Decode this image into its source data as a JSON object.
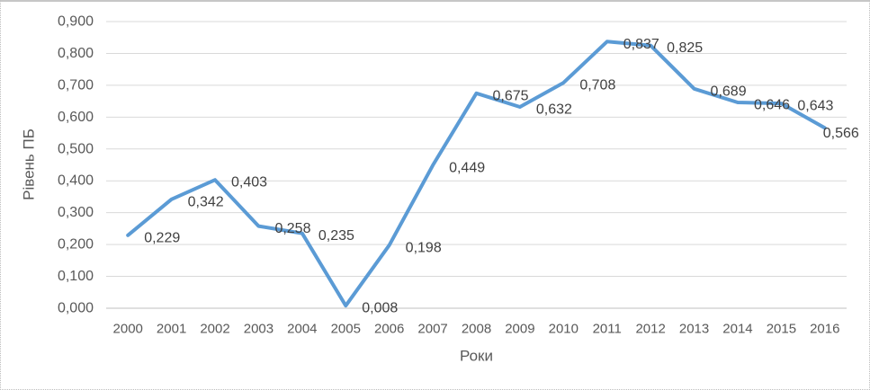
{
  "chart_data": {
    "type": "line",
    "title": "",
    "xlabel": "Роки",
    "ylabel": "Рівень ПБ",
    "categories": [
      "2000",
      "2001",
      "2002",
      "2003",
      "2004",
      "2005",
      "2006",
      "2007",
      "2008",
      "2009",
      "2010",
      "2011",
      "2012",
      "2013",
      "2014",
      "2015",
      "2016"
    ],
    "values": [
      0.229,
      0.342,
      0.403,
      0.258,
      0.235,
      0.008,
      0.198,
      0.449,
      0.675,
      0.632,
      0.708,
      0.837,
      0.825,
      0.689,
      0.646,
      0.643,
      0.566
    ],
    "point_labels": [
      "0,229",
      "0,342",
      "0,403",
      "0,258",
      "0,235",
      "0,008",
      "0,198",
      "0,449",
      "0,675",
      "0,632",
      "0,708",
      "0,837",
      "0,825",
      "0,689",
      "0,646",
      "0,643",
      "0,566"
    ],
    "ytick_values": [
      0,
      0.1,
      0.2,
      0.3,
      0.4,
      0.5,
      0.6,
      0.7,
      0.8,
      0.9
    ],
    "ytick_labels": [
      "0,000",
      "0,100",
      "0,200",
      "0,300",
      "0,400",
      "0,500",
      "0,600",
      "0,700",
      "0,800",
      "0,900"
    ],
    "ylim": [
      0,
      0.9
    ],
    "grid": true,
    "legend": false,
    "number_format": "comma-decimal",
    "colors": {
      "line": "#5B9BD5",
      "gridline": "#D9D9D9",
      "axis_line": "#BFBFBF",
      "tick_text": "#595959",
      "label_text": "#404040"
    }
  }
}
